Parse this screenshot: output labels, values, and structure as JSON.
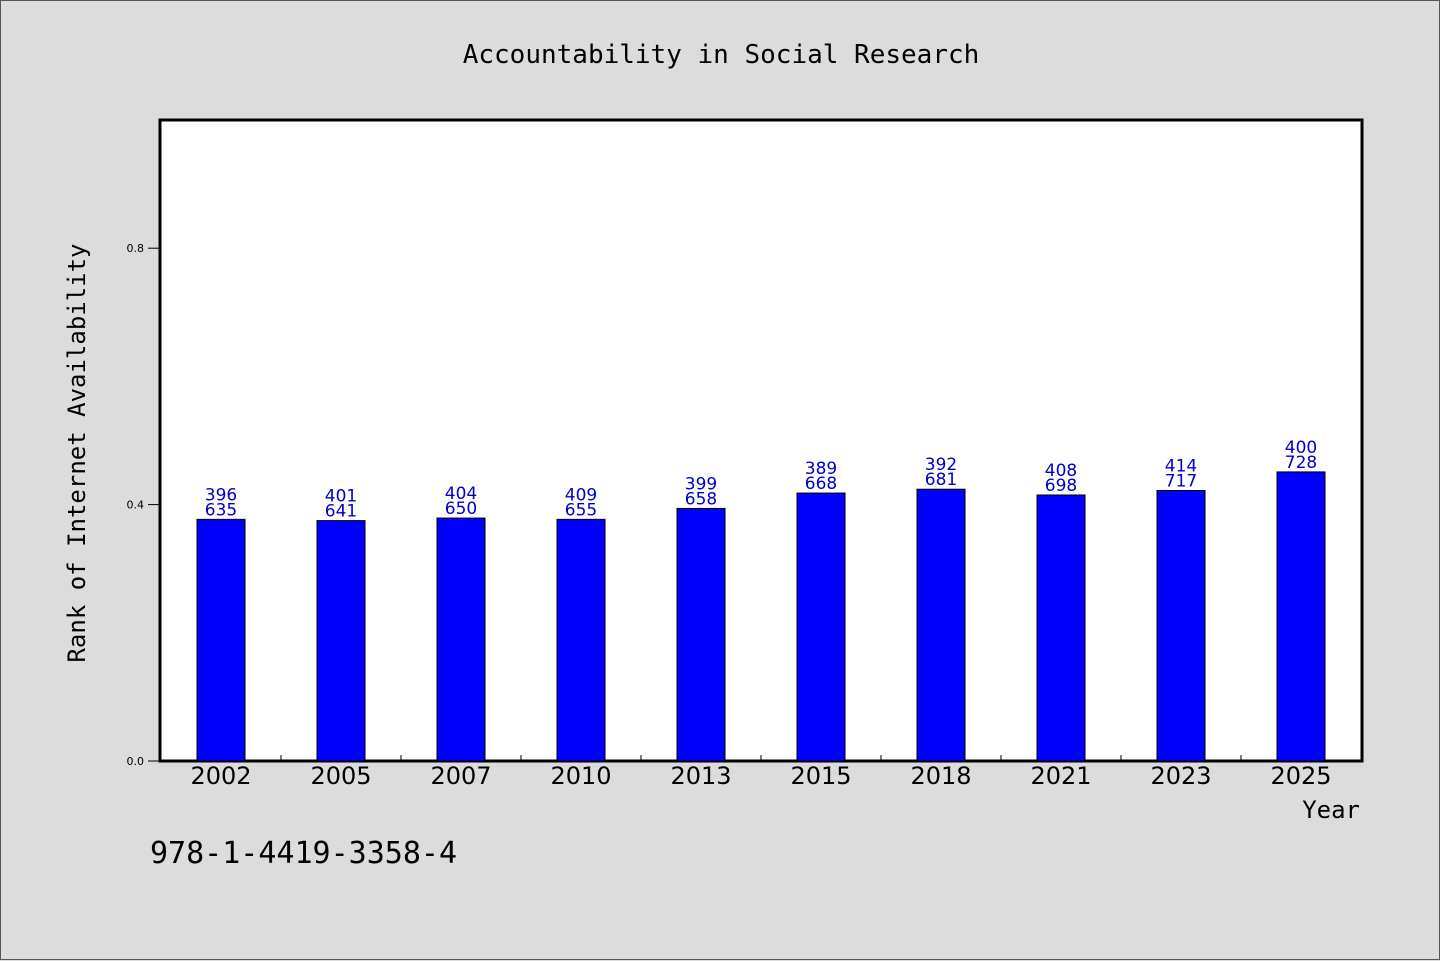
{
  "chart_data": {
    "type": "bar",
    "title": "Accountability in Social Research",
    "xlabel": "Year",
    "ylabel": "Rank of Internet Availability",
    "categories": [
      "2002",
      "2005",
      "2007",
      "2010",
      "2013",
      "2015",
      "2018",
      "2021",
      "2023",
      "2025"
    ],
    "series": [
      {
        "values": [
          0.377,
          0.375,
          0.379,
          0.377,
          0.394,
          0.418,
          0.424,
          0.415,
          0.422,
          0.451
        ]
      }
    ],
    "data_labels": [
      [
        "396",
        "635"
      ],
      [
        "401",
        "641"
      ],
      [
        "404",
        "650"
      ],
      [
        "409",
        "655"
      ],
      [
        "399",
        "658"
      ],
      [
        "389",
        "668"
      ],
      [
        "392",
        "681"
      ],
      [
        "408",
        "698"
      ],
      [
        "414",
        "717"
      ],
      [
        "400",
        "728"
      ]
    ],
    "yticks": [
      "0.0",
      "0.4",
      "0.8"
    ],
    "ytick_values": [
      0.0,
      0.4,
      0.8
    ],
    "ylim": [
      0,
      1.0
    ],
    "grid": false,
    "legend": "none",
    "colors": {
      "bar": "#0000ff",
      "bar_edge": "#000000",
      "label": "#0000cc",
      "background": "#dcdcdc",
      "plot_background": "#ffffff"
    }
  },
  "footer": {
    "identifier": "978-1-4419-3358-4"
  }
}
